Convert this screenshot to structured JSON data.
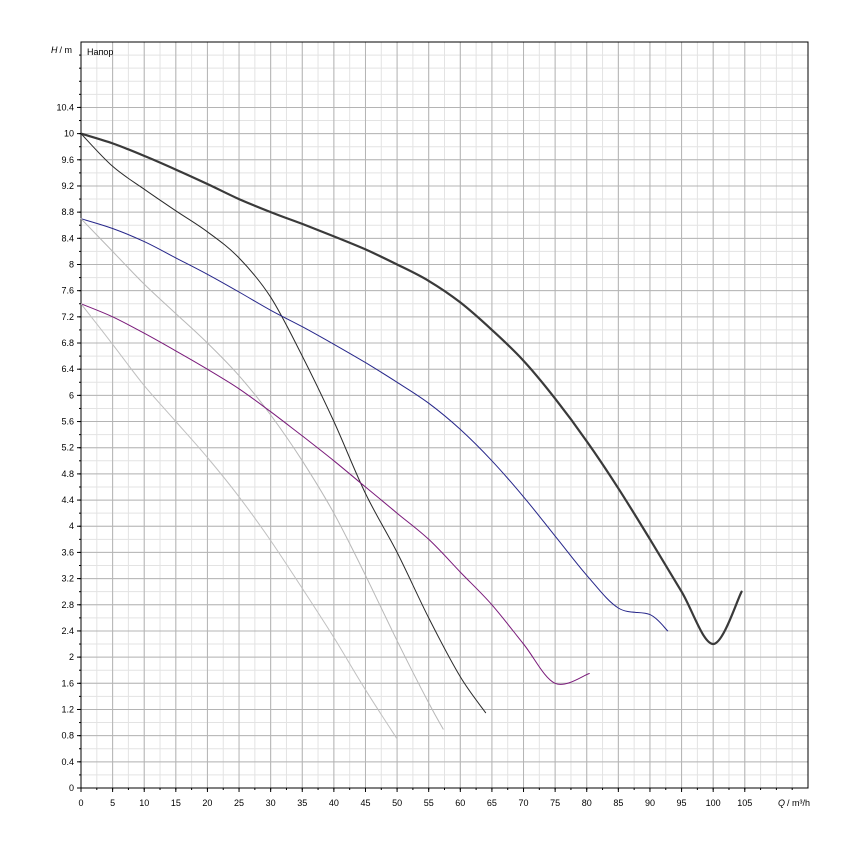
{
  "chart_data": {
    "type": "line",
    "title": "Напор",
    "ylabel_var": "H",
    "ylabel_unit": "/ m",
    "xlabel_var": "Q",
    "xlabel_unit": "/ m³/h",
    "xlim": [
      0,
      115
    ],
    "ylim": [
      0,
      11.4
    ],
    "x_ticks": [
      0,
      5,
      10,
      15,
      20,
      25,
      30,
      35,
      40,
      45,
      50,
      55,
      60,
      65,
      70,
      75,
      80,
      85,
      90,
      95,
      100,
      105
    ],
    "x_minor_step": 2.5,
    "y_ticks": [
      0,
      0.4,
      0.8,
      1.2,
      1.6,
      2,
      2.4,
      2.8,
      3.2,
      3.6,
      4,
      4.4,
      4.8,
      5.2,
      5.6,
      6,
      6.4,
      6.8,
      7.2,
      7.6,
      8,
      8.4,
      8.8,
      9.2,
      9.6,
      10,
      10.4
    ],
    "y_minor_step": 0.2,
    "grid": true,
    "series": [
      {
        "color": "#3a3a3a",
        "width": 2.2,
        "points": [
          [
            0,
            10
          ],
          [
            5,
            9.85
          ],
          [
            10,
            9.66
          ],
          [
            15,
            9.45
          ],
          [
            20,
            9.23
          ],
          [
            25,
            9.0
          ],
          [
            30,
            8.8
          ],
          [
            35,
            8.62
          ],
          [
            40,
            8.43
          ],
          [
            45,
            8.23
          ],
          [
            50,
            8.0
          ],
          [
            55,
            7.75
          ],
          [
            60,
            7.42
          ],
          [
            65,
            7.0
          ],
          [
            70,
            6.53
          ],
          [
            75,
            5.95
          ],
          [
            80,
            5.3
          ],
          [
            85,
            4.58
          ],
          [
            90,
            3.8
          ],
          [
            95,
            3.0
          ],
          [
            100,
            2.2
          ],
          [
            104.5,
            3.0
          ]
        ]
      },
      {
        "color": "#2a2a2a",
        "width": 1.0,
        "points": [
          [
            0,
            10
          ],
          [
            5,
            9.5
          ],
          [
            10,
            9.15
          ],
          [
            15,
            8.82
          ],
          [
            20,
            8.5
          ],
          [
            25,
            8.1
          ],
          [
            30,
            7.5
          ],
          [
            35,
            6.6
          ],
          [
            40,
            5.6
          ],
          [
            45,
            4.5
          ],
          [
            50,
            3.6
          ],
          [
            55,
            2.6
          ],
          [
            60,
            1.7
          ],
          [
            64,
            1.15
          ]
        ]
      },
      {
        "color": "#26268a",
        "width": 1.0,
        "points": [
          [
            0,
            8.7
          ],
          [
            5,
            8.55
          ],
          [
            10,
            8.35
          ],
          [
            15,
            8.1
          ],
          [
            20,
            7.85
          ],
          [
            25,
            7.58
          ],
          [
            30,
            7.3
          ],
          [
            35,
            7.05
          ],
          [
            40,
            6.78
          ],
          [
            45,
            6.5
          ],
          [
            50,
            6.2
          ],
          [
            55,
            5.88
          ],
          [
            60,
            5.48
          ],
          [
            65,
            5.0
          ],
          [
            70,
            4.45
          ],
          [
            75,
            3.85
          ],
          [
            80,
            3.25
          ],
          [
            85,
            2.75
          ],
          [
            90,
            2.65
          ],
          [
            92.8,
            2.4
          ]
        ]
      },
      {
        "color": "#b8b8b8",
        "width": 1.0,
        "points": [
          [
            0,
            8.7
          ],
          [
            5,
            8.2
          ],
          [
            10,
            7.7
          ],
          [
            15,
            7.25
          ],
          [
            20,
            6.8
          ],
          [
            25,
            6.3
          ],
          [
            30,
            5.7
          ],
          [
            35,
            5.0
          ],
          [
            40,
            4.2
          ],
          [
            45,
            3.25
          ],
          [
            50,
            2.25
          ],
          [
            55,
            1.3
          ],
          [
            57.3,
            0.9
          ]
        ]
      },
      {
        "color": "#7a1a7a",
        "width": 1.0,
        "points": [
          [
            0,
            7.4
          ],
          [
            5,
            7.2
          ],
          [
            10,
            6.95
          ],
          [
            15,
            6.68
          ],
          [
            20,
            6.4
          ],
          [
            25,
            6.1
          ],
          [
            30,
            5.75
          ],
          [
            35,
            5.38
          ],
          [
            40,
            5.0
          ],
          [
            45,
            4.6
          ],
          [
            50,
            4.2
          ],
          [
            55,
            3.8
          ],
          [
            60,
            3.3
          ],
          [
            65,
            2.8
          ],
          [
            70,
            2.2
          ],
          [
            75,
            1.6
          ],
          [
            80.4,
            1.75
          ]
        ]
      },
      {
        "color": "#c0c0c0",
        "width": 1.0,
        "points": [
          [
            0,
            7.4
          ],
          [
            5,
            6.78
          ],
          [
            10,
            6.15
          ],
          [
            15,
            5.6
          ],
          [
            20,
            5.05
          ],
          [
            25,
            4.45
          ],
          [
            30,
            3.78
          ],
          [
            35,
            3.05
          ],
          [
            40,
            2.3
          ],
          [
            45,
            1.5
          ],
          [
            50,
            0.75
          ]
        ]
      }
    ]
  }
}
